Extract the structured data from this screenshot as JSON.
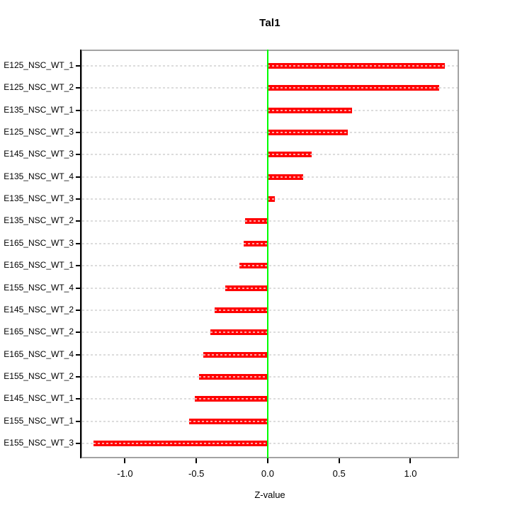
{
  "title": "Tal1",
  "x_axis_label": "Z-value",
  "colors": {
    "bar": "#ff0000",
    "zero_line": "#00ff00",
    "grid_line": "#dcdcdc",
    "plot_border": "#a3a3a3",
    "axis": "#000000"
  },
  "chart_data": {
    "type": "bar",
    "orientation": "horizontal",
    "title": "Tal1",
    "xlabel": "Z-value",
    "ylabel": "",
    "grid": true,
    "legend": false,
    "zero_reference_line": 0.0,
    "xlim": [
      -1.31,
      1.34
    ],
    "x_ticks": [
      -1.0,
      -0.5,
      0.0,
      0.5,
      1.0
    ],
    "x_tick_labels": [
      "-1.0",
      "-0.5",
      "0.0",
      "0.5",
      "1.0"
    ],
    "categories": [
      "E125_NSC_WT_1",
      "E125_NSC_WT_2",
      "E135_NSC_WT_1",
      "E125_NSC_WT_3",
      "E145_NSC_WT_3",
      "E135_NSC_WT_4",
      "E135_NSC_WT_3",
      "E135_NSC_WT_2",
      "E165_NSC_WT_3",
      "E165_NSC_WT_1",
      "E155_NSC_WT_4",
      "E145_NSC_WT_2",
      "E165_NSC_WT_2",
      "E165_NSC_WT_4",
      "E155_NSC_WT_2",
      "E145_NSC_WT_1",
      "E155_NSC_WT_1",
      "E155_NSC_WT_3"
    ],
    "values": [
      1.24,
      1.2,
      0.59,
      0.56,
      0.31,
      0.25,
      0.05,
      -0.16,
      -0.17,
      -0.2,
      -0.3,
      -0.37,
      -0.4,
      -0.45,
      -0.48,
      -0.51,
      -0.55,
      -1.22
    ]
  }
}
